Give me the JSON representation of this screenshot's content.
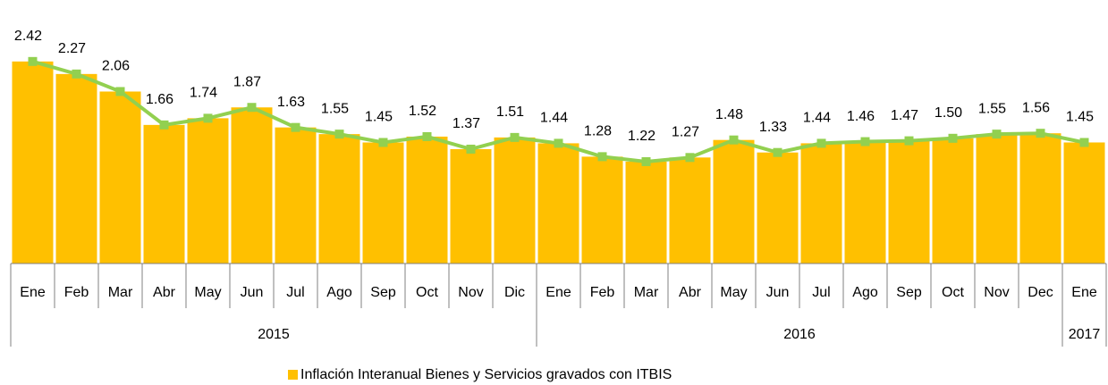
{
  "chart_data": {
    "type": "bar",
    "categories": [
      "Ene",
      "Feb",
      "Mar",
      "Abr",
      "May",
      "Jun",
      "Jul",
      "Ago",
      "Sep",
      "Oct",
      "Nov",
      "Dic",
      "Ene",
      "Feb",
      "Mar",
      "Abr",
      "May",
      "Jun",
      "Jul",
      "Ago",
      "Sep",
      "Oct",
      "Nov",
      "Dec",
      "Ene"
    ],
    "category_groups": [
      {
        "label": "2015",
        "span": 12
      },
      {
        "label": "2016",
        "span": 12
      },
      {
        "label": "2017",
        "span": 1
      }
    ],
    "series": [
      {
        "name": "Inflación Interanual Bienes y Servicios gravados con ITBIS",
        "color": "#ffc000",
        "values": [
          2.42,
          2.27,
          2.06,
          1.66,
          1.74,
          1.87,
          1.63,
          1.55,
          1.45,
          1.52,
          1.37,
          1.51,
          1.44,
          1.28,
          1.22,
          1.27,
          1.48,
          1.33,
          1.44,
          1.46,
          1.47,
          1.5,
          1.55,
          1.56,
          1.45
        ],
        "value_labels": [
          "2.42",
          "2.27",
          "2.06",
          "1.66",
          "1.74",
          "1.87",
          "1.63",
          "1.55",
          "1.45",
          "1.52",
          "1.37",
          "1.51",
          "1.44",
          "1.28",
          "1.22",
          "1.27",
          "1.48",
          "1.33",
          "1.44",
          "1.46",
          "1.47",
          "1.50",
          "1.55",
          "1.56",
          "1.45"
        ]
      }
    ],
    "line_overlay_color": "#92d050",
    "ylim": [
      0,
      2.6
    ],
    "legend": "bottom"
  }
}
